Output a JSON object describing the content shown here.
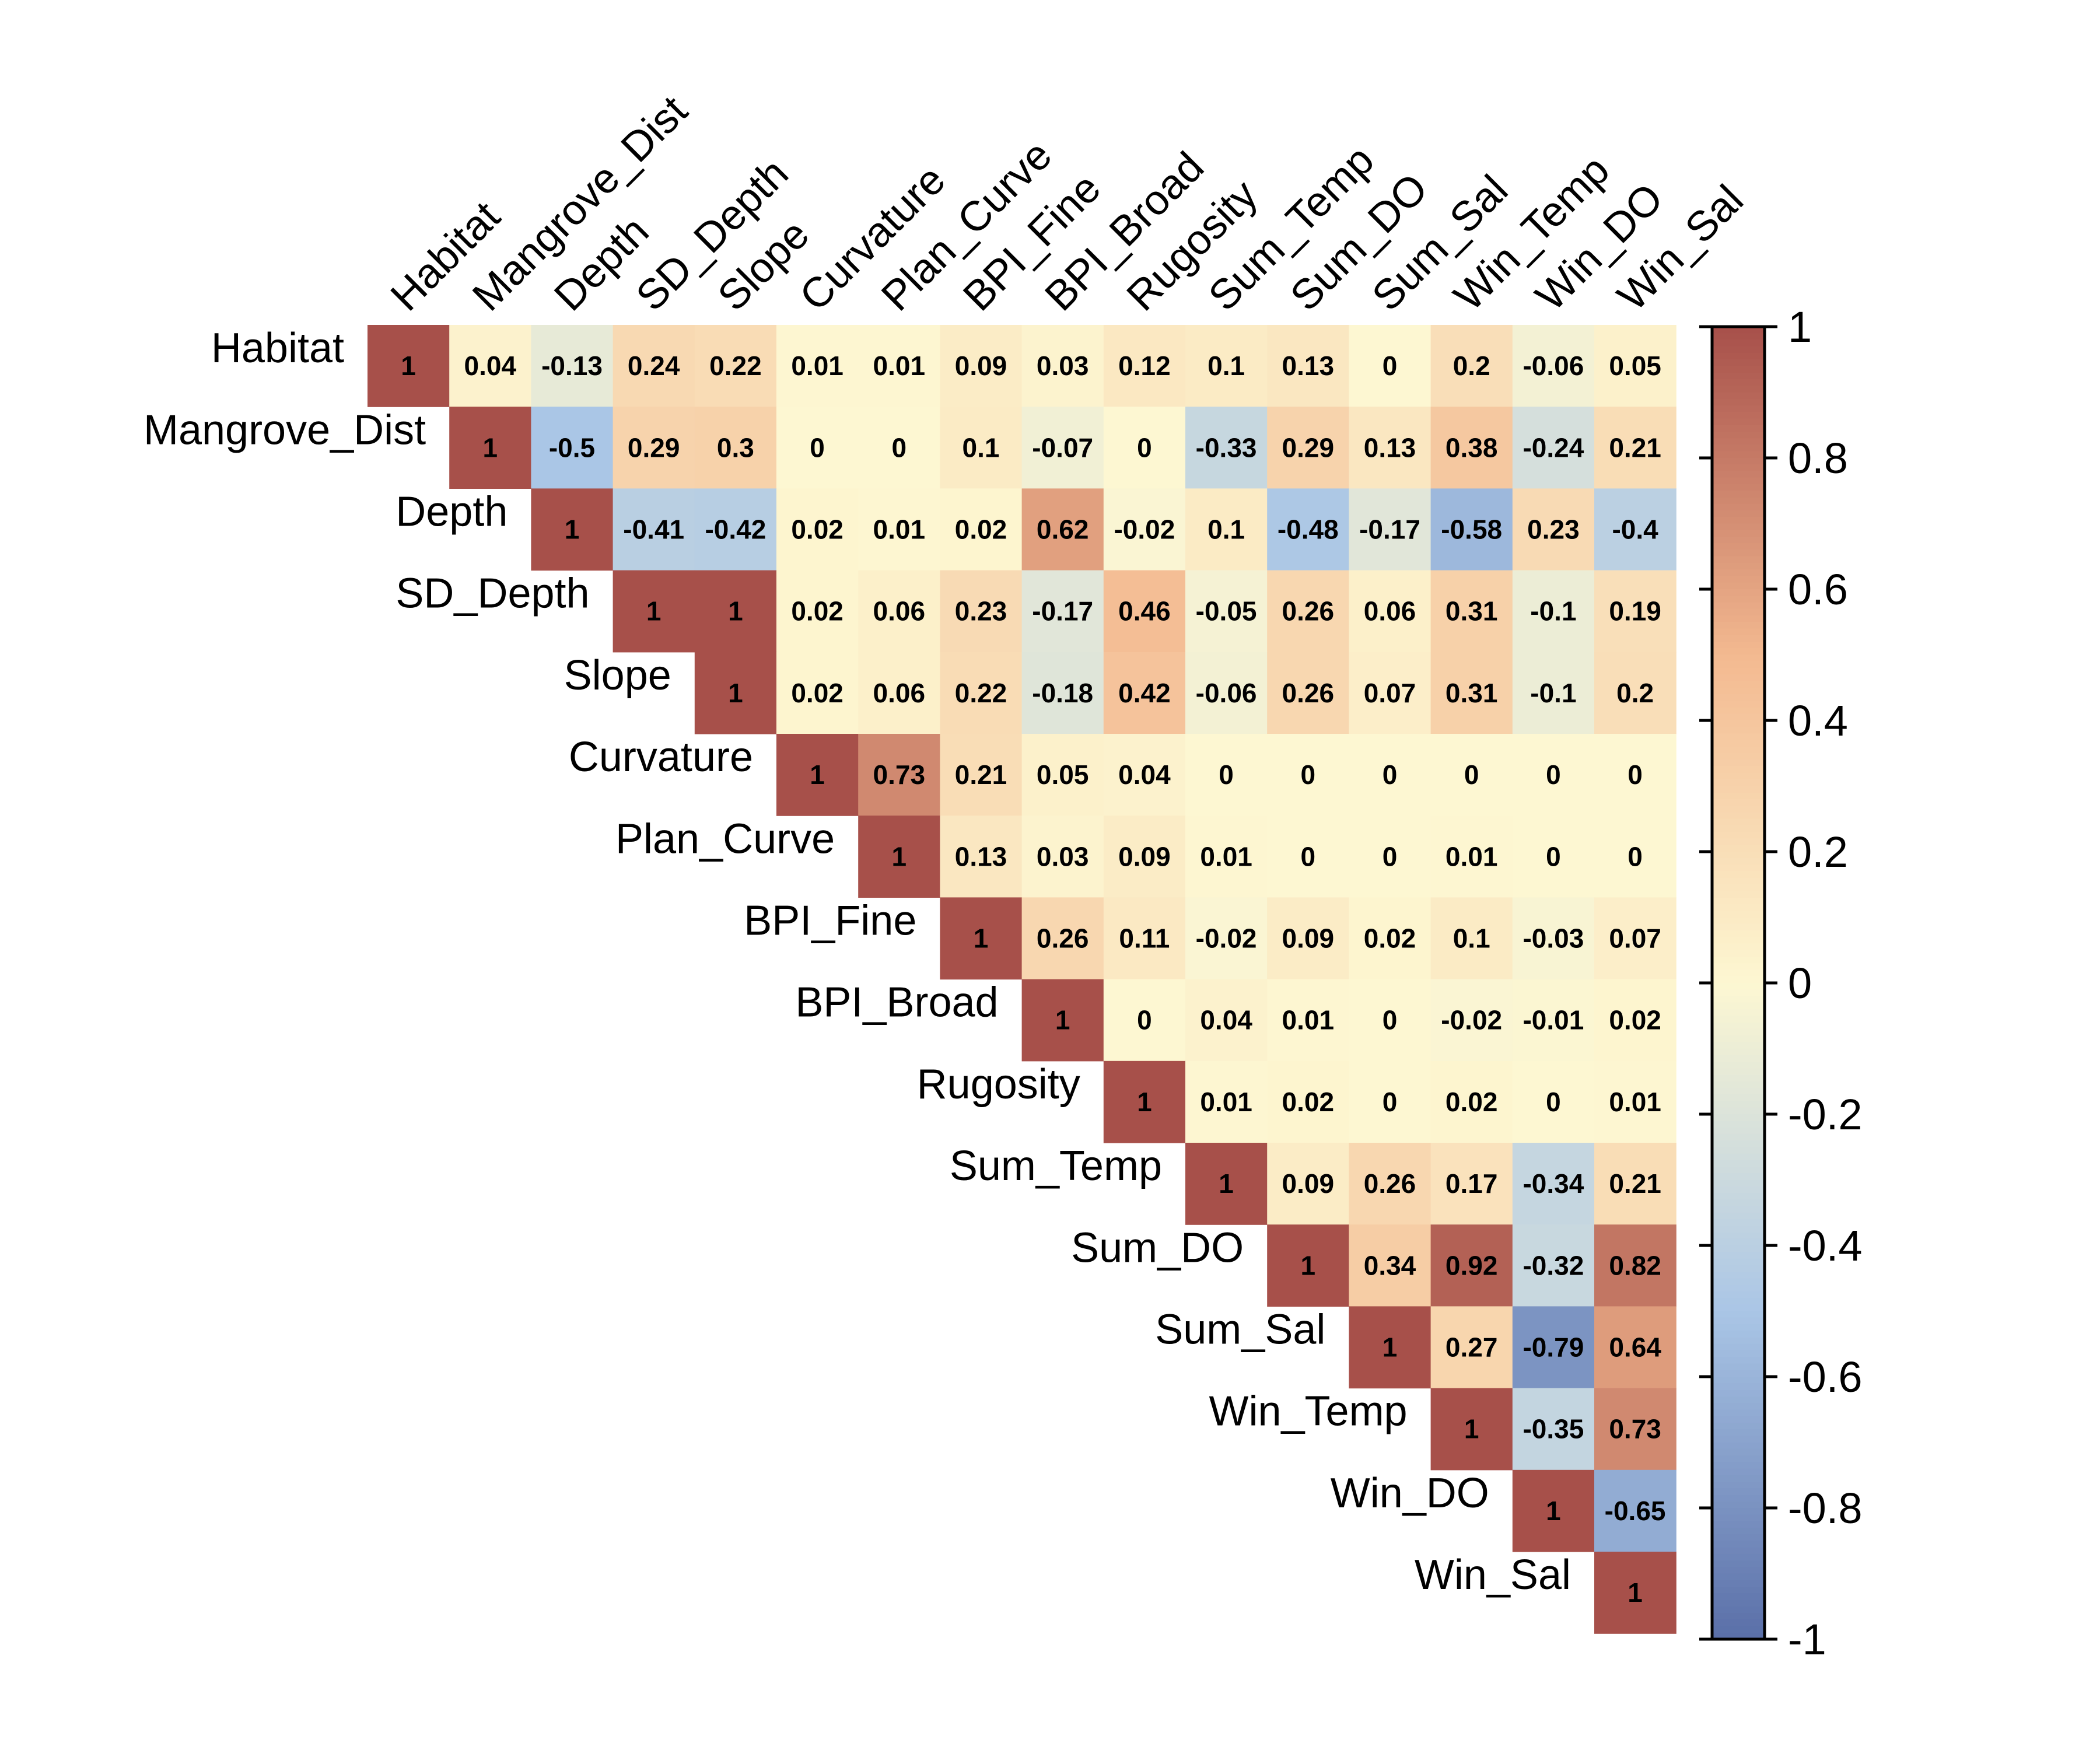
{
  "chart_data": {
    "type": "heatmap",
    "variables": [
      "Habitat",
      "Mangrove_Dist",
      "Depth",
      "SD_Depth",
      "Slope",
      "Curvature",
      "Plan_Curve",
      "BPI_Fine",
      "BPI_Broad",
      "Rugosity",
      "Sum_Temp",
      "Sum_DO",
      "Sum_Sal",
      "Win_Temp",
      "Win_DO",
      "Win_Sal"
    ],
    "matrix": [
      [
        1,
        0.04,
        -0.13,
        0.24,
        0.22,
        0.01,
        0.01,
        0.09,
        0.03,
        0.12,
        0.1,
        0.13,
        0,
        0.2,
        -0.06,
        0.05
      ],
      [
        null,
        1,
        -0.5,
        0.29,
        0.3,
        0,
        0,
        0.1,
        -0.07,
        0,
        -0.33,
        0.29,
        0.13,
        0.38,
        -0.24,
        0.21
      ],
      [
        null,
        null,
        1,
        -0.41,
        -0.42,
        0.02,
        0.01,
        0.02,
        0.62,
        -0.02,
        0.1,
        -0.48,
        -0.17,
        -0.58,
        0.23,
        -0.4
      ],
      [
        null,
        null,
        null,
        1,
        1,
        0.02,
        0.06,
        0.23,
        -0.17,
        0.46,
        -0.05,
        0.26,
        0.06,
        0.31,
        -0.1,
        0.19
      ],
      [
        null,
        null,
        null,
        null,
        1,
        0.02,
        0.06,
        0.22,
        -0.18,
        0.42,
        -0.06,
        0.26,
        0.07,
        0.31,
        -0.1,
        0.2
      ],
      [
        null,
        null,
        null,
        null,
        null,
        1,
        0.73,
        0.21,
        0.05,
        0.04,
        0,
        0,
        0,
        0,
        0,
        0
      ],
      [
        null,
        null,
        null,
        null,
        null,
        null,
        1,
        0.13,
        0.03,
        0.09,
        0.01,
        0,
        0,
        0.01,
        0,
        0
      ],
      [
        null,
        null,
        null,
        null,
        null,
        null,
        null,
        1,
        0.26,
        0.11,
        -0.02,
        0.09,
        0.02,
        0.1,
        -0.03,
        0.07
      ],
      [
        null,
        null,
        null,
        null,
        null,
        null,
        null,
        null,
        1,
        0,
        0.04,
        0.01,
        0,
        -0.02,
        -0.01,
        0.02
      ],
      [
        null,
        null,
        null,
        null,
        null,
        null,
        null,
        null,
        null,
        1,
        0.01,
        0.02,
        0,
        0.02,
        0,
        0.01
      ],
      [
        null,
        null,
        null,
        null,
        null,
        null,
        null,
        null,
        null,
        null,
        1,
        0.09,
        0.26,
        0.17,
        -0.34,
        0.21
      ],
      [
        null,
        null,
        null,
        null,
        null,
        null,
        null,
        null,
        null,
        null,
        null,
        1,
        0.34,
        0.92,
        -0.32,
        0.82
      ],
      [
        null,
        null,
        null,
        null,
        null,
        null,
        null,
        null,
        null,
        null,
        null,
        null,
        1,
        0.27,
        -0.79,
        0.64
      ],
      [
        null,
        null,
        null,
        null,
        null,
        null,
        null,
        null,
        null,
        null,
        null,
        null,
        null,
        1,
        -0.35,
        0.73
      ],
      [
        null,
        null,
        null,
        null,
        null,
        null,
        null,
        null,
        null,
        null,
        null,
        null,
        null,
        null,
        1,
        -0.65
      ],
      [
        null,
        null,
        null,
        null,
        null,
        null,
        null,
        null,
        null,
        null,
        null,
        null,
        null,
        null,
        null,
        1
      ]
    ],
    "layout": "upper-triangle",
    "colorbar": {
      "range": [
        -1,
        1
      ],
      "ticks": [
        "1",
        "0.8",
        "0.6",
        "0.4",
        "0.2",
        "0",
        "-0.2",
        "-0.4",
        "-0.6",
        "-0.8",
        "-1"
      ],
      "colors": {
        "neg_max": "#5a6fa8",
        "neg_mid": "#aac6e6",
        "zero": "#fdf7d2",
        "pos_mid": "#f3b990",
        "pos_max": "#a7504a"
      }
    },
    "title": "",
    "xlabel": "",
    "ylabel": ""
  }
}
